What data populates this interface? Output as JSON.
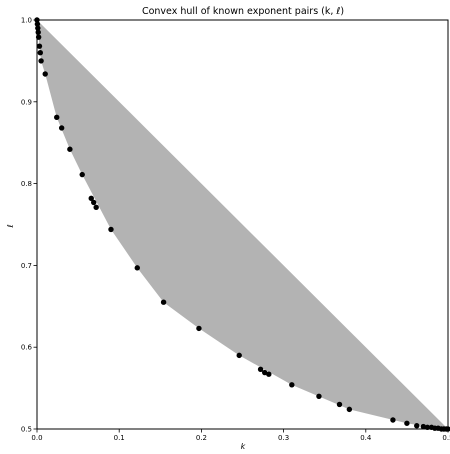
{
  "chart_data": {
    "type": "scatter",
    "title": "Convex hull of known exponent pairs (k, ℓ)",
    "xlabel": "k",
    "ylabel": "ℓ",
    "xlim": [
      0,
      0.5
    ],
    "ylim": [
      0.5,
      1.0
    ],
    "x_ticks": [
      0.0,
      0.1,
      0.2,
      0.3,
      0.4,
      0.5
    ],
    "x_tick_labels": [
      "0.0",
      "0.1",
      "0.2",
      "0.3",
      "0.4",
      "0.5"
    ],
    "y_ticks": [
      0.5,
      0.6,
      0.7,
      0.8,
      0.9,
      1.0
    ],
    "y_tick_labels": [
      "0.5",
      "0.6",
      "0.7",
      "0.8",
      "0.9",
      "1.0"
    ],
    "grid": false,
    "hull_color": "#b3b3b3",
    "point_color": "#000000",
    "hull": [
      [
        0.0,
        1.0
      ],
      [
        0.5,
        0.5
      ],
      [
        0.48,
        0.502
      ],
      [
        0.45,
        0.507
      ],
      [
        0.38,
        0.524
      ],
      [
        0.31,
        0.554
      ],
      [
        0.246,
        0.59
      ],
      [
        0.197,
        0.623
      ],
      [
        0.154,
        0.655
      ],
      [
        0.122,
        0.697
      ],
      [
        0.09,
        0.744
      ],
      [
        0.055,
        0.811
      ],
      [
        0.04,
        0.842
      ],
      [
        0.024,
        0.881
      ],
      [
        0.01,
        0.934
      ],
      [
        0.005,
        0.95
      ],
      [
        0.003,
        0.968
      ],
      [
        0.0015,
        0.985
      ],
      [
        0.0,
        0.998
      ]
    ],
    "points": [
      [
        0.0,
        1.0
      ],
      [
        0.0005,
        0.995
      ],
      [
        0.001,
        0.99
      ],
      [
        0.0015,
        0.985
      ],
      [
        0.002,
        0.979
      ],
      [
        0.003,
        0.968
      ],
      [
        0.004,
        0.96
      ],
      [
        0.005,
        0.95
      ],
      [
        0.01,
        0.934
      ],
      [
        0.024,
        0.881
      ],
      [
        0.03,
        0.868
      ],
      [
        0.04,
        0.842
      ],
      [
        0.055,
        0.811
      ],
      [
        0.066,
        0.782
      ],
      [
        0.069,
        0.777
      ],
      [
        0.072,
        0.771
      ],
      [
        0.09,
        0.744
      ],
      [
        0.122,
        0.697
      ],
      [
        0.154,
        0.655
      ],
      [
        0.197,
        0.623
      ],
      [
        0.246,
        0.59
      ],
      [
        0.272,
        0.573
      ],
      [
        0.277,
        0.569
      ],
      [
        0.282,
        0.567
      ],
      [
        0.31,
        0.554
      ],
      [
        0.343,
        0.54
      ],
      [
        0.368,
        0.53
      ],
      [
        0.38,
        0.524
      ],
      [
        0.433,
        0.511
      ],
      [
        0.45,
        0.507
      ],
      [
        0.462,
        0.504
      ],
      [
        0.47,
        0.503
      ],
      [
        0.475,
        0.502
      ],
      [
        0.48,
        0.502
      ],
      [
        0.484,
        0.501
      ],
      [
        0.488,
        0.501
      ],
      [
        0.492,
        0.5
      ],
      [
        0.495,
        0.5
      ],
      [
        0.498,
        0.5
      ],
      [
        0.5,
        0.5
      ]
    ]
  }
}
